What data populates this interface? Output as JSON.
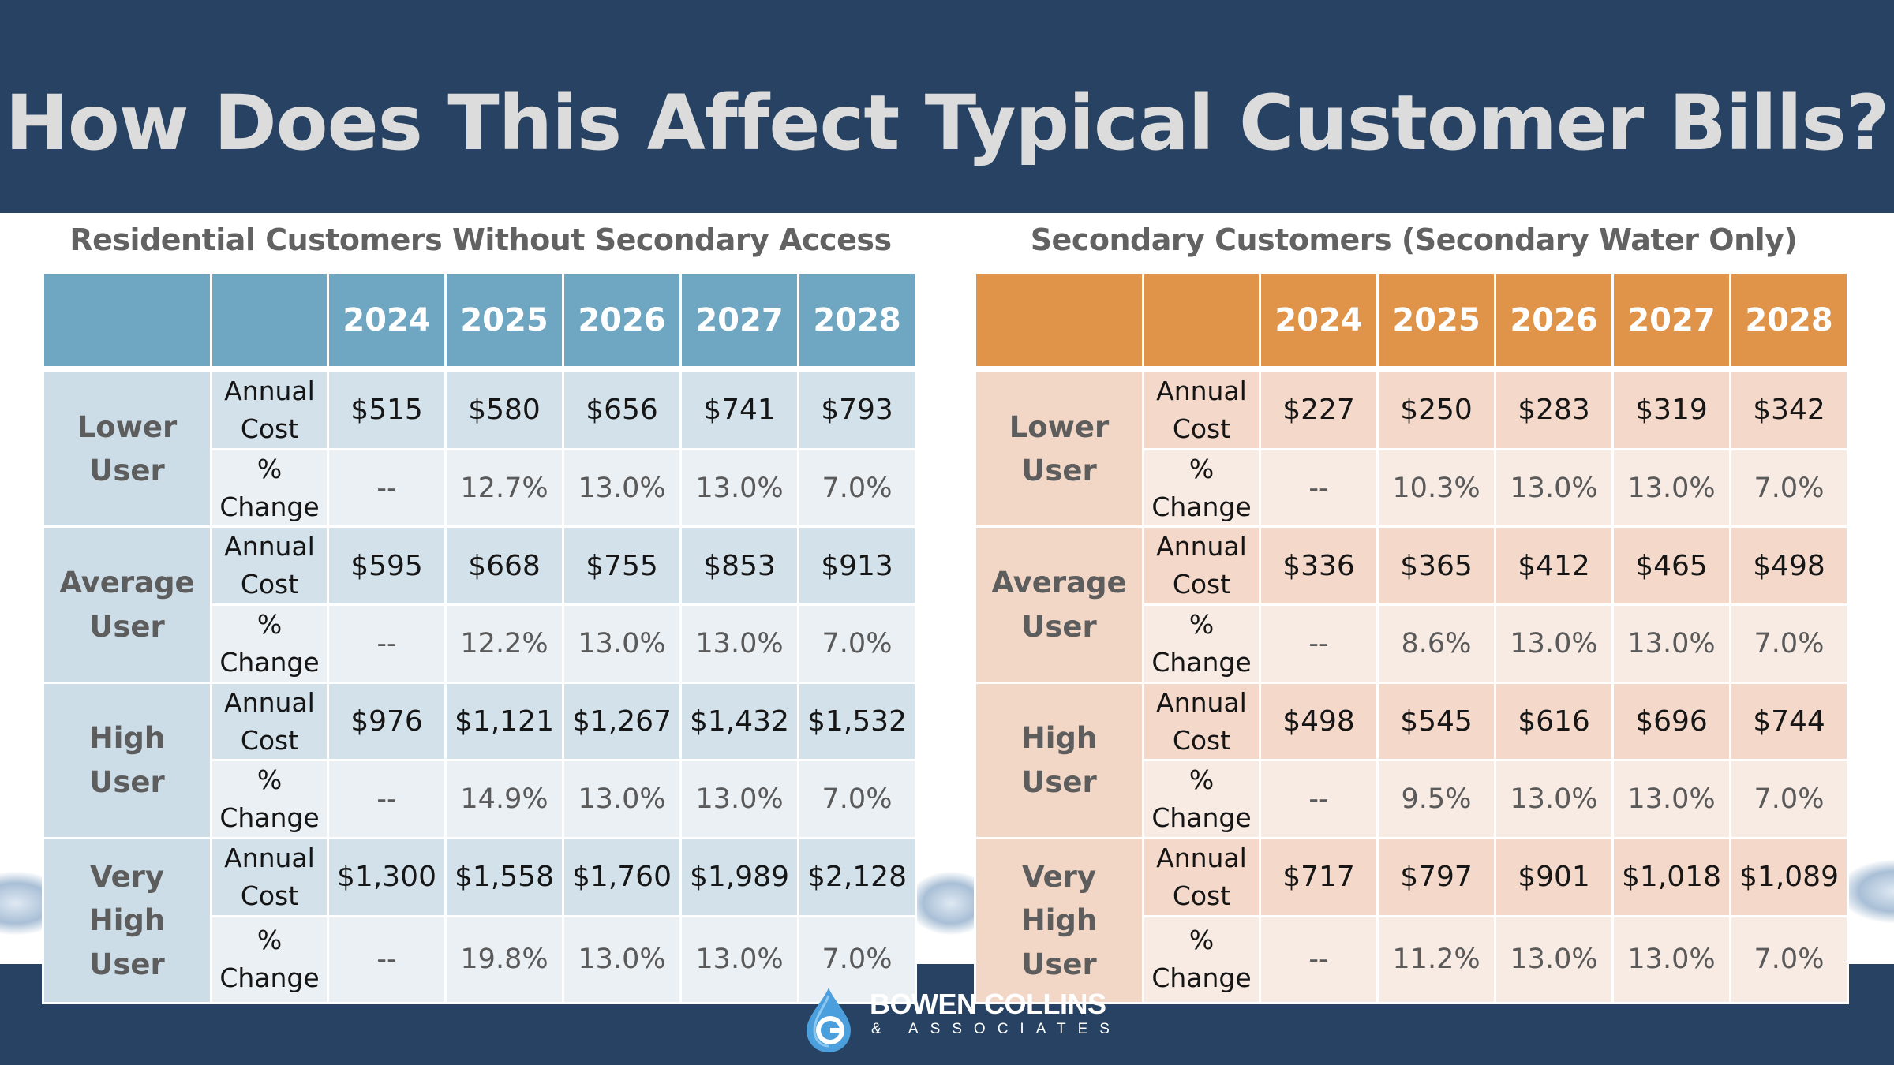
{
  "title": "How Does This Affect Typical Customer Bills?",
  "colors": {
    "header_bg": "#274262",
    "left_accent": "#6fa7c3",
    "right_accent": "#df944a"
  },
  "tables": [
    {
      "title": "Residential Customers Without Secondary Access",
      "years": [
        "2024",
        "2025",
        "2026",
        "2027",
        "2028"
      ],
      "groups": [
        {
          "label": [
            "Lower",
            "User"
          ],
          "annual_label": [
            "Annual",
            "Cost"
          ],
          "change_label": [
            "%",
            "Change"
          ],
          "annual": [
            "$515",
            "$580",
            "$656",
            "$741",
            "$793"
          ],
          "change": [
            "--",
            "12.7%",
            "13.0%",
            "13.0%",
            "7.0%"
          ]
        },
        {
          "label": [
            "Average",
            "User"
          ],
          "annual_label": [
            "Annual",
            "Cost"
          ],
          "change_label": [
            "%",
            "Change"
          ],
          "annual": [
            "$595",
            "$668",
            "$755",
            "$853",
            "$913"
          ],
          "change": [
            "--",
            "12.2%",
            "13.0%",
            "13.0%",
            "7.0%"
          ]
        },
        {
          "label": [
            "High",
            "User"
          ],
          "annual_label": [
            "Annual",
            "Cost"
          ],
          "change_label": [
            "%",
            "Change"
          ],
          "annual": [
            "$976",
            "$1,121",
            "$1,267",
            "$1,432",
            "$1,532"
          ],
          "change": [
            "--",
            "14.9%",
            "13.0%",
            "13.0%",
            "7.0%"
          ]
        },
        {
          "label": [
            "Very",
            "High",
            "User"
          ],
          "annual_label": [
            "Annual",
            "Cost"
          ],
          "change_label": [
            "%",
            "Change"
          ],
          "annual": [
            "$1,300",
            "$1,558",
            "$1,760",
            "$1,989",
            "$2,128"
          ],
          "change": [
            "--",
            "19.8%",
            "13.0%",
            "13.0%",
            "7.0%"
          ]
        }
      ]
    },
    {
      "title": "Secondary Customers (Secondary Water Only)",
      "years": [
        "2024",
        "2025",
        "2026",
        "2027",
        "2028"
      ],
      "groups": [
        {
          "label": [
            "Lower",
            "User"
          ],
          "annual_label": [
            "Annual",
            "Cost"
          ],
          "change_label": [
            "%",
            "Change"
          ],
          "annual": [
            "$227",
            "$250",
            "$283",
            "$319",
            "$342"
          ],
          "change": [
            "--",
            "10.3%",
            "13.0%",
            "13.0%",
            "7.0%"
          ]
        },
        {
          "label": [
            "Average",
            "User"
          ],
          "annual_label": [
            "Annual",
            "Cost"
          ],
          "change_label": [
            "%",
            "Change"
          ],
          "annual": [
            "$336",
            "$365",
            "$412",
            "$465",
            "$498"
          ],
          "change": [
            "--",
            "8.6%",
            "13.0%",
            "13.0%",
            "7.0%"
          ]
        },
        {
          "label": [
            "High",
            "User"
          ],
          "annual_label": [
            "Annual",
            "Cost"
          ],
          "change_label": [
            "%",
            "Change"
          ],
          "annual": [
            "$498",
            "$545",
            "$616",
            "$696",
            "$744"
          ],
          "change": [
            "--",
            "9.5%",
            "13.0%",
            "13.0%",
            "7.0%"
          ]
        },
        {
          "label": [
            "Very",
            "High",
            "User"
          ],
          "annual_label": [
            "Annual",
            "Cost"
          ],
          "change_label": [
            "%",
            "Change"
          ],
          "annual": [
            "$717",
            "$797",
            "$901",
            "$1,018",
            "$1,089"
          ],
          "change": [
            "--",
            "11.2%",
            "13.0%",
            "13.0%",
            "7.0%"
          ]
        }
      ]
    }
  ],
  "logo": {
    "name": "BOWEN COLLINS",
    "sub": "& ASSOCIATES",
    "icon": "water-drop-logo-icon"
  }
}
